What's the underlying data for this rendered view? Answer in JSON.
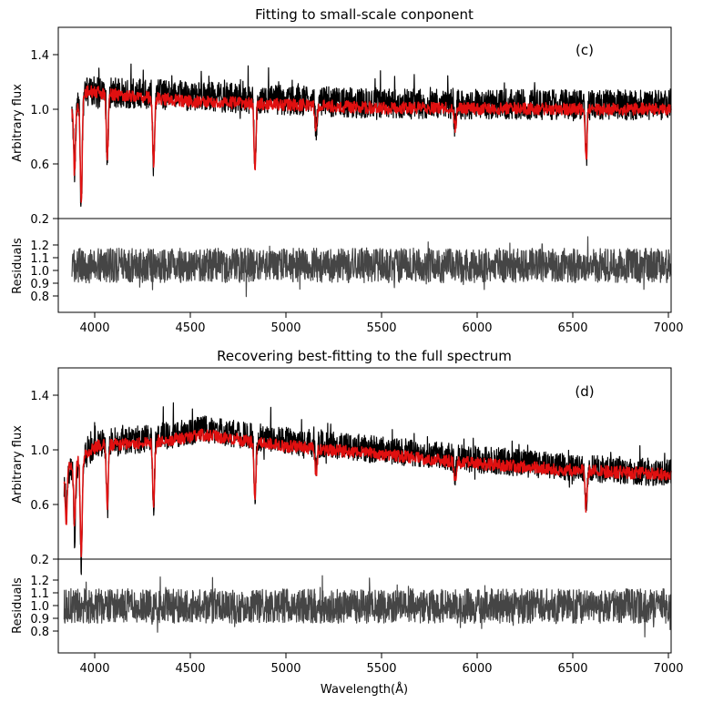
{
  "chart_data": [
    {
      "type": "line",
      "title": "Fitting to small-scale conponent",
      "annotation": "(c)",
      "upper_panel": {
        "ylabel": "Arbitrary flux",
        "ylim": [
          0.2,
          1.6
        ],
        "yticks": [
          "0.2",
          "0.6",
          "1.0",
          "1.4"
        ],
        "xlim": [
          3850,
          7000
        ],
        "series": [
          {
            "color": "#000000",
            "x_range": [
              3920,
              7000
            ],
            "level_profile": [
              [
                3920,
                1.0
              ],
              [
                4000,
                1.13
              ],
              [
                4500,
                1.1
              ],
              [
                5500,
                1.04
              ],
              [
                7000,
                1.03
              ]
            ],
            "noise": 0.11,
            "absorption_lines": [
              [
                3934,
                0.45
              ],
              [
                3968,
                0.8
              ],
              [
                4102,
                0.5
              ],
              [
                4340,
                0.55
              ],
              [
                4861,
                0.5
              ],
              [
                5175,
                0.2
              ],
              [
                5890,
                0.18
              ],
              [
                6563,
                0.35
              ]
            ]
          },
          {
            "color": "#e01010",
            "x_range": [
              3920,
              7000
            ],
            "level_profile": [
              [
                3920,
                1.0
              ],
              [
                4000,
                1.13
              ],
              [
                4500,
                1.06
              ],
              [
                5500,
                1.01
              ],
              [
                7000,
                1.0
              ]
            ],
            "noise": 0.045,
            "absorption_lines": [
              [
                3934,
                0.5
              ],
              [
                3968,
                0.75
              ],
              [
                4102,
                0.48
              ],
              [
                4340,
                0.5
              ],
              [
                4861,
                0.48
              ],
              [
                5175,
                0.2
              ],
              [
                5890,
                0.15
              ],
              [
                6563,
                0.38
              ]
            ]
          }
        ]
      },
      "lower_panel": {
        "ylabel": "Residuals",
        "ylim": [
          0.7,
          1.3
        ],
        "yticks": [
          "0.8",
          "0.9",
          "1.0",
          "1.1",
          "1.2"
        ],
        "series": [
          {
            "color": "#454545",
            "x_range": [
              3920,
              7000
            ],
            "center": 1.0,
            "amplitude": 0.13
          }
        ]
      },
      "xticks": [
        "4000",
        "4500",
        "5000",
        "5500",
        "6000",
        "6500",
        "7000"
      ],
      "xlabel": ""
    },
    {
      "type": "line",
      "title": "Recovering best-fitting to the full spectrum",
      "annotation": "(d)",
      "upper_panel": {
        "ylabel": "Arbitrary flux",
        "ylim": [
          0.2,
          1.6
        ],
        "yticks": [
          "0.2",
          "0.6",
          "1.0",
          "1.4"
        ],
        "xlim": [
          3850,
          7000
        ],
        "series": [
          {
            "color": "#000000",
            "x_range": [
              3880,
              7000
            ],
            "level_profile": [
              [
                3880,
                0.8
              ],
              [
                3950,
                0.9
              ],
              [
                4050,
                1.05
              ],
              [
                4300,
                1.08
              ],
              [
                4600,
                1.15
              ],
              [
                5000,
                1.07
              ],
              [
                5500,
                1.0
              ],
              [
                6000,
                0.93
              ],
              [
                6500,
                0.87
              ],
              [
                7000,
                0.83
              ]
            ],
            "noise": 0.1,
            "absorption_lines": [
              [
                3890,
                0.35
              ],
              [
                3934,
                0.5
              ],
              [
                3968,
                0.75
              ],
              [
                4102,
                0.5
              ],
              [
                4340,
                0.5
              ],
              [
                4861,
                0.5
              ],
              [
                5175,
                0.2
              ],
              [
                5890,
                0.18
              ],
              [
                6563,
                0.3
              ]
            ]
          },
          {
            "color": "#e01010",
            "x_range": [
              3880,
              7000
            ],
            "level_profile": [
              [
                3880,
                0.85
              ],
              [
                3950,
                0.92
              ],
              [
                4050,
                1.03
              ],
              [
                4300,
                1.05
              ],
              [
                4600,
                1.11
              ],
              [
                5000,
                1.03
              ],
              [
                5500,
                0.97
              ],
              [
                6000,
                0.9
              ],
              [
                6500,
                0.85
              ],
              [
                7000,
                0.82
              ]
            ],
            "noise": 0.045,
            "absorption_lines": [
              [
                3890,
                0.4
              ],
              [
                3934,
                0.45
              ],
              [
                3968,
                0.72
              ],
              [
                4102,
                0.45
              ],
              [
                4340,
                0.45
              ],
              [
                4861,
                0.42
              ],
              [
                5175,
                0.2
              ],
              [
                5890,
                0.15
              ],
              [
                6563,
                0.28
              ]
            ]
          }
        ]
      },
      "lower_panel": {
        "ylabel": "Residuals",
        "ylim": [
          0.7,
          1.3
        ],
        "yticks": [
          "0.8",
          "0.9",
          "1.0",
          "1.1",
          "1.2"
        ],
        "series": [
          {
            "color": "#454545",
            "x_range": [
              3880,
              7000
            ],
            "center": 1.0,
            "amplitude": 0.13
          }
        ]
      },
      "xticks": [
        "4000",
        "4500",
        "5000",
        "5500",
        "6000",
        "6500",
        "7000"
      ],
      "xlabel": "Wavelength(Å)"
    }
  ]
}
